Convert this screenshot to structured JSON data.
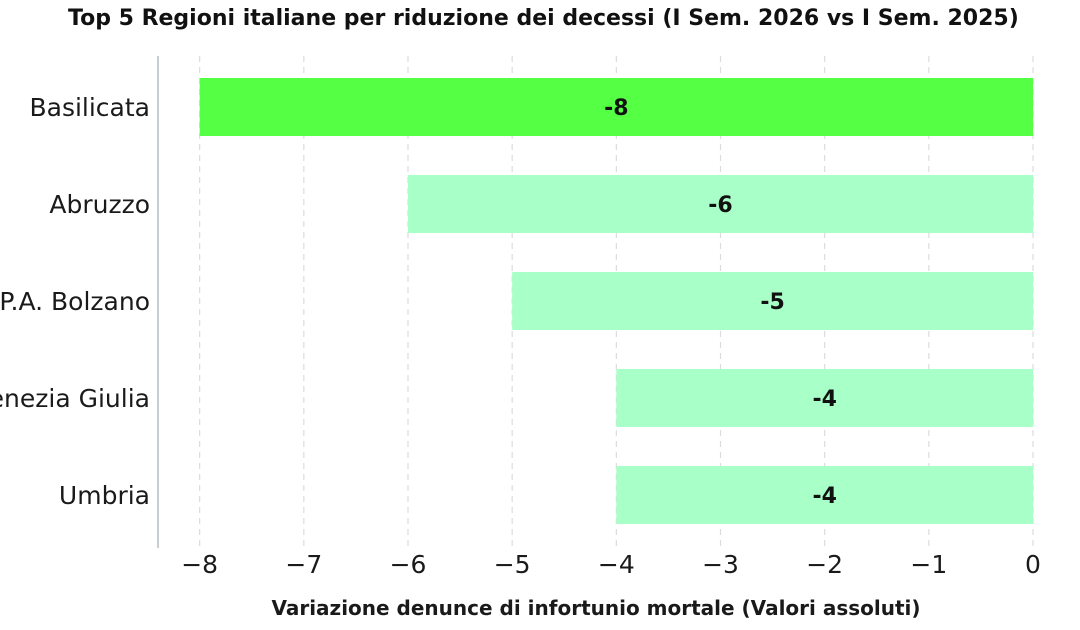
{
  "chart_data": {
    "type": "bar",
    "orientation": "horizontal",
    "title": "Top 5 Regioni italiane per riduzione dei decessi (I Sem. 2026 vs I Sem. 2025)",
    "xlabel": "Variazione denunce di infortunio mortale (Valori assoluti)",
    "ylabel": "",
    "categories": [
      "Basilicata",
      "Abruzzo",
      "P.A. Bolzano",
      "Friuli-Venezia Giulia",
      "Umbria"
    ],
    "values": [
      -8,
      -6,
      -5,
      -4,
      -4
    ],
    "data_labels": [
      "-8",
      "-6",
      "-5",
      "-4",
      "-4"
    ],
    "xlim": [
      -8.4,
      0
    ],
    "xticks": [
      -8,
      -7,
      -6,
      -5,
      -4,
      -3,
      -2,
      -1,
      0
    ],
    "xtick_labels": [
      "−8",
      "−7",
      "−6",
      "−5",
      "−4",
      "−3",
      "−2",
      "−1",
      "0"
    ],
    "grid": "vertical dashed",
    "colors": {
      "highlight": "#55ff44",
      "bar": "#a8ffc8",
      "grid": "#dcdcdc",
      "spine": "#c8cdd2"
    },
    "highlight_index": 0
  }
}
